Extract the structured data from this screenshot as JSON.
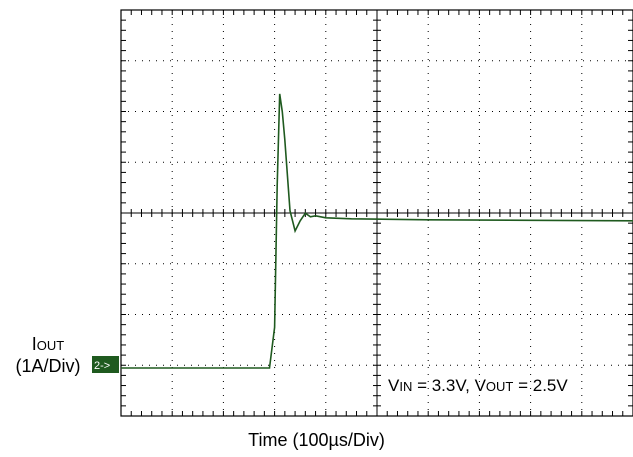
{
  "chart_data": {
    "type": "line",
    "title": "",
    "xlabel": "Time (100µs/Div)",
    "ylabel": "",
    "divisions": {
      "x": 10,
      "y": 8
    },
    "grid": true,
    "channel": {
      "marker": "2->",
      "name_main": "I",
      "name_sub": "OUT",
      "scale": "(1A/Div)",
      "color": "#1f5a1f"
    },
    "annotation": {
      "vin_main": "V",
      "vin_sub": "IN",
      "vin_value": " = 3.3V, ",
      "vout_main": "V",
      "vout_sub": "OUT",
      "vout_value": " = 2.5V"
    },
    "series": [
      {
        "color": "#1f5a1f",
        "x": [
          0,
          2.9,
          3.0,
          3.05,
          3.1,
          3.15,
          3.2,
          3.3,
          3.4,
          3.5,
          3.6,
          3.7,
          3.8,
          4.0,
          4.5,
          6.0,
          8.0,
          10.0
        ],
        "y": [
          0,
          0,
          0.8,
          3.6,
          5.4,
          5.05,
          4.5,
          3.1,
          2.7,
          2.9,
          3.05,
          2.98,
          3.0,
          2.96,
          2.94,
          2.92,
          2.91,
          2.9
        ]
      }
    ]
  }
}
